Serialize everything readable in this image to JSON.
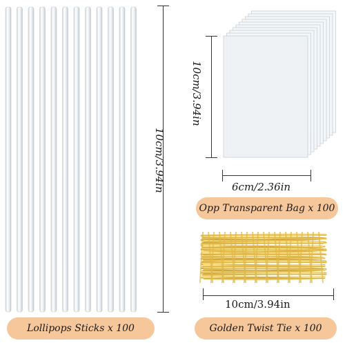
{
  "labels": {
    "stick_length": "10cm/3.94in",
    "bag_height": "10cm/3.94in",
    "bag_width": "6cm/2.36in",
    "tie_length": "10cm/3.94in"
  },
  "badges": {
    "bag": "Opp Transparent Bag x 100",
    "sticks": "Lollipops Sticks x 100",
    "ties": "Golden Twist Tie x 100"
  },
  "colors": {
    "badge_bg": "#f5c79a",
    "gold": "#d9b24a",
    "stick": "#e9eef2"
  },
  "quantities": {
    "sticks_shown": 12,
    "bags_shown": 10
  }
}
